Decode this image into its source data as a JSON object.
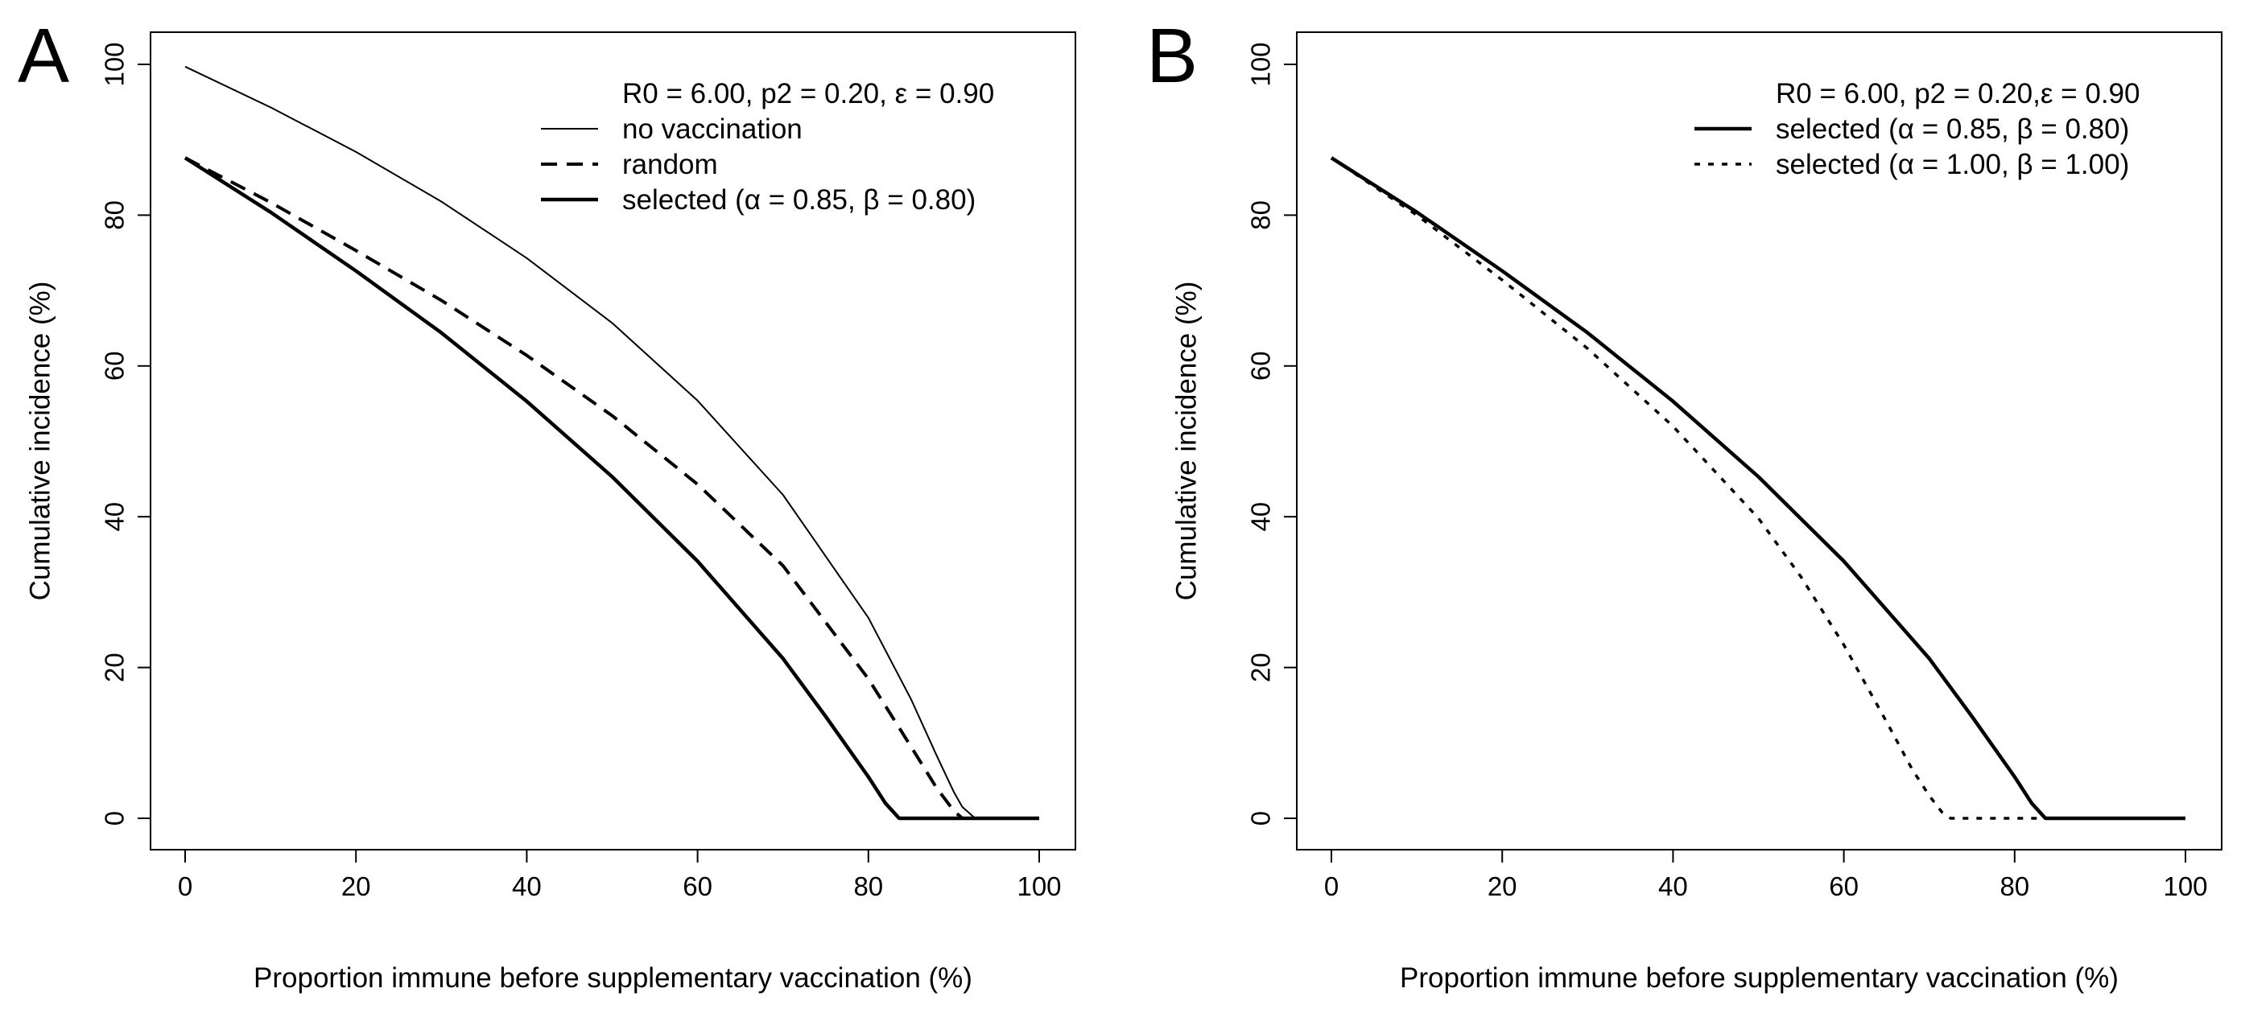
{
  "chart_data": [
    {
      "panel_label": "A",
      "type": "line",
      "title": "",
      "xlabel": "Proportion immune before supplementary vaccination (%)",
      "ylabel": "Cumulative incidence (%)",
      "xlim": [
        0,
        100
      ],
      "ylim": [
        0,
        100
      ],
      "xticks": [
        0,
        20,
        40,
        60,
        80,
        100
      ],
      "yticks": [
        0,
        20,
        40,
        60,
        80,
        100
      ],
      "grid": false,
      "legend_position": "top-right",
      "legend_title": "R0 = 6.00, p2 = 0.20, ε = 0.90",
      "series": [
        {
          "name": "no vaccination",
          "style": "solid-thin",
          "x": [
            0,
            10,
            20,
            30,
            40,
            50,
            60,
            70,
            80,
            85,
            88,
            90,
            91,
            92.5,
            100
          ],
          "y": [
            99.7,
            94.3,
            88.4,
            81.8,
            74.3,
            65.7,
            55.4,
            42.9,
            26.6,
            15.8,
            8.3,
            3.5,
            1.5,
            0,
            0
          ]
        },
        {
          "name": "random",
          "style": "dashed",
          "x": [
            0,
            10,
            20,
            30,
            40,
            50,
            60,
            70,
            80,
            85,
            88,
            90,
            91,
            100
          ],
          "y": [
            87.6,
            81.7,
            75.3,
            68.7,
            61.4,
            53.4,
            44.3,
            33.5,
            18.5,
            9.5,
            4.0,
            1.0,
            0,
            0
          ]
        },
        {
          "name": "selected (α = 0.85, β = 0.80)",
          "style": "solid-thick",
          "x": [
            0,
            10,
            20,
            30,
            40,
            50,
            60,
            70,
            75,
            80,
            82,
            83.6,
            100
          ],
          "y": [
            87.6,
            80.4,
            72.6,
            64.4,
            55.3,
            45.3,
            34.1,
            21.2,
            13.5,
            5.5,
            2.0,
            0,
            0
          ]
        }
      ]
    },
    {
      "panel_label": "B",
      "type": "line",
      "title": "",
      "xlabel": "Proportion immune before supplementary vaccination (%)",
      "ylabel": "Cumulative incidence (%)",
      "xlim": [
        0,
        100
      ],
      "ylim": [
        0,
        100
      ],
      "xticks": [
        0,
        20,
        40,
        60,
        80,
        100
      ],
      "yticks": [
        0,
        20,
        40,
        60,
        80,
        100
      ],
      "grid": false,
      "legend_position": "top-right",
      "legend_title": "R0 = 6.00, p2 = 0.20,ε = 0.90",
      "series": [
        {
          "name": "selected (α = 0.85, β = 0.80)",
          "style": "solid-thick",
          "x": [
            0,
            10,
            20,
            30,
            40,
            50,
            60,
            70,
            75,
            80,
            82,
            83.6,
            100
          ],
          "y": [
            87.6,
            80.4,
            72.6,
            64.4,
            55.3,
            45.3,
            34.1,
            21.2,
            13.5,
            5.5,
            2.0,
            0,
            0
          ]
        },
        {
          "name": "selected (α = 1.00, β = 1.00)",
          "style": "dotted",
          "x": [
            0,
            10,
            20,
            30,
            40,
            50,
            55,
            60,
            65,
            68,
            70,
            71.5,
            72.5,
            100
          ],
          "y": [
            87.6,
            80.0,
            71.4,
            62.3,
            52.0,
            39.8,
            32.0,
            23.0,
            12.8,
            6.5,
            3.0,
            0.8,
            0,
            0
          ]
        }
      ]
    }
  ]
}
